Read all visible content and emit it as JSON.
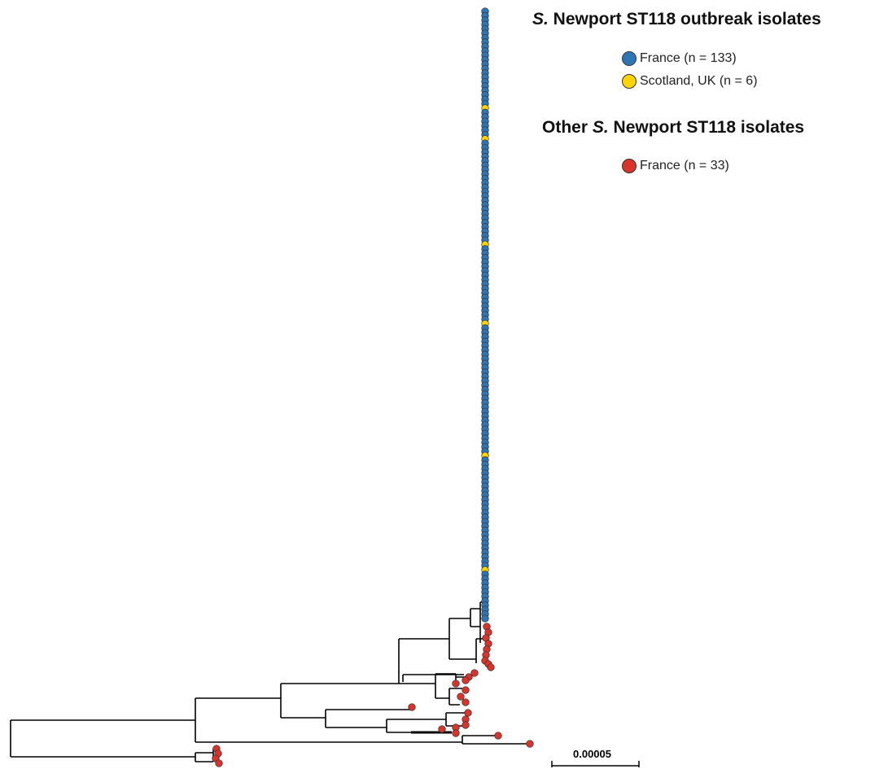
{
  "colors": {
    "france_outbreak": "#2e75b6",
    "scotland_uk": "#ffd400",
    "france_other": "#d9342b",
    "branch": "#000000"
  },
  "legend": {
    "outbreak": {
      "title_italic": "S.",
      "title_rest": " Newport ST118 outbreak isolates",
      "items": [
        {
          "label": "France (n = 133)",
          "color": "#2e75b6"
        },
        {
          "label": "Scotland, UK  (n = 6)",
          "color": "#ffd400"
        }
      ]
    },
    "other": {
      "title_pre": "Other ",
      "title_italic": "S.",
      "title_rest": " Newport ST118  isolates",
      "items": [
        {
          "label": "France (n = 33)",
          "color": "#d9342b"
        }
      ]
    }
  },
  "scale_bar": {
    "label": "0.00005"
  }
}
